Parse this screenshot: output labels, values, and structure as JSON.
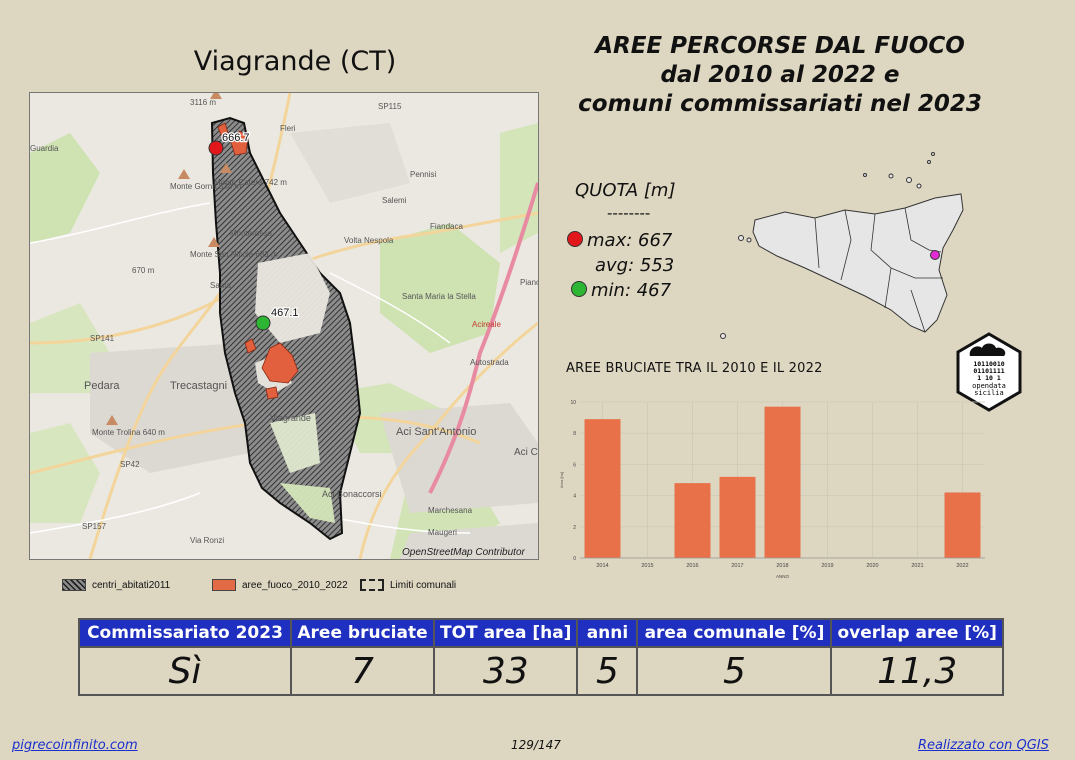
{
  "map_title": "Viagrande (CT)",
  "main_title": [
    "AREE PERCORSE DAL FUOCO",
    "dal 2010 al 2022 e",
    "comuni commissariati nel 2023"
  ],
  "map": {
    "labels": [
      "Monte Gorna 834 m",
      "Monte San Nicola 683 m",
      "Monte Catera 742 m",
      "Monte Trolina 640 m",
      "Pedara",
      "Trecastagni",
      "Viagrande",
      "Aci Sant'Antonio",
      "Aci Bonaccorsi",
      "Aci Cat",
      "Marchesana",
      "Maugeri",
      "Monterosso",
      "Volta Nespola",
      "Santa Maria la Stella",
      "Fiandaca",
      "Salemi",
      "Pennisi",
      "Fleri",
      "Piano d'",
      "Guardia",
      "Santa",
      "SP141",
      "SP42",
      "SP157",
      "SP115",
      "Via Ronzi",
      "Autostrada",
      "Acireale",
      "3116 m",
      "670 m",
      "OpenStreetMap Contributor"
    ],
    "max_label": "666.7",
    "min_label": "467.1",
    "attribution": "OpenStreetMap Contributor"
  },
  "legend": [
    {
      "label": "centri_abitati2011",
      "color": "#6e6e6e"
    },
    {
      "label": "aree_fuoco_2010_2022",
      "color": "#e26b46"
    },
    {
      "label": "Limiti comunali",
      "color": "#222222"
    }
  ],
  "quota": {
    "title": "QUOTA [m]",
    "sep": "--------",
    "max": "max: 667",
    "avg": "avg: 553",
    "min": "min: 467",
    "max_color": "#e2171b",
    "min_color": "#2db534"
  },
  "chart_title": "AREE BRUCIATE TRA IL 2010 E IL 2022",
  "badge": {
    "bits": [
      "10110010",
      "01101111",
      "1   10 1"
    ],
    "text": [
      "opendata",
      "sicilia"
    ]
  },
  "chart_data": {
    "type": "bar",
    "title": "AREE BRUCIATE TRA IL 2010 E IL 2022",
    "categories": [
      "2014",
      "2015",
      "2016",
      "2017",
      "2018",
      "2019",
      "2020",
      "2021",
      "2022"
    ],
    "values": [
      8.9,
      0,
      4.8,
      5.2,
      9.7,
      0,
      0,
      0,
      4.2
    ],
    "xlabel": "ANNO",
    "ylabel": "Area [ha]",
    "yticks": [
      "0",
      "2",
      "4",
      "6",
      "8",
      "10"
    ],
    "ylim": [
      0,
      10
    ],
    "bar_color": "#e8714a",
    "grid": true
  },
  "table": {
    "headers": [
      "Commissariato 2023",
      "Aree bruciate",
      "TOT area [ha]",
      "anni",
      "area comunale [%]",
      "overlap aree [%]"
    ],
    "values": [
      "Sì",
      "7",
      "33",
      "5",
      "5",
      "11,3"
    ]
  },
  "footer": {
    "left": "pigrecoinfinito.com",
    "center": "129/147",
    "right": "Realizzato con QGIS"
  }
}
